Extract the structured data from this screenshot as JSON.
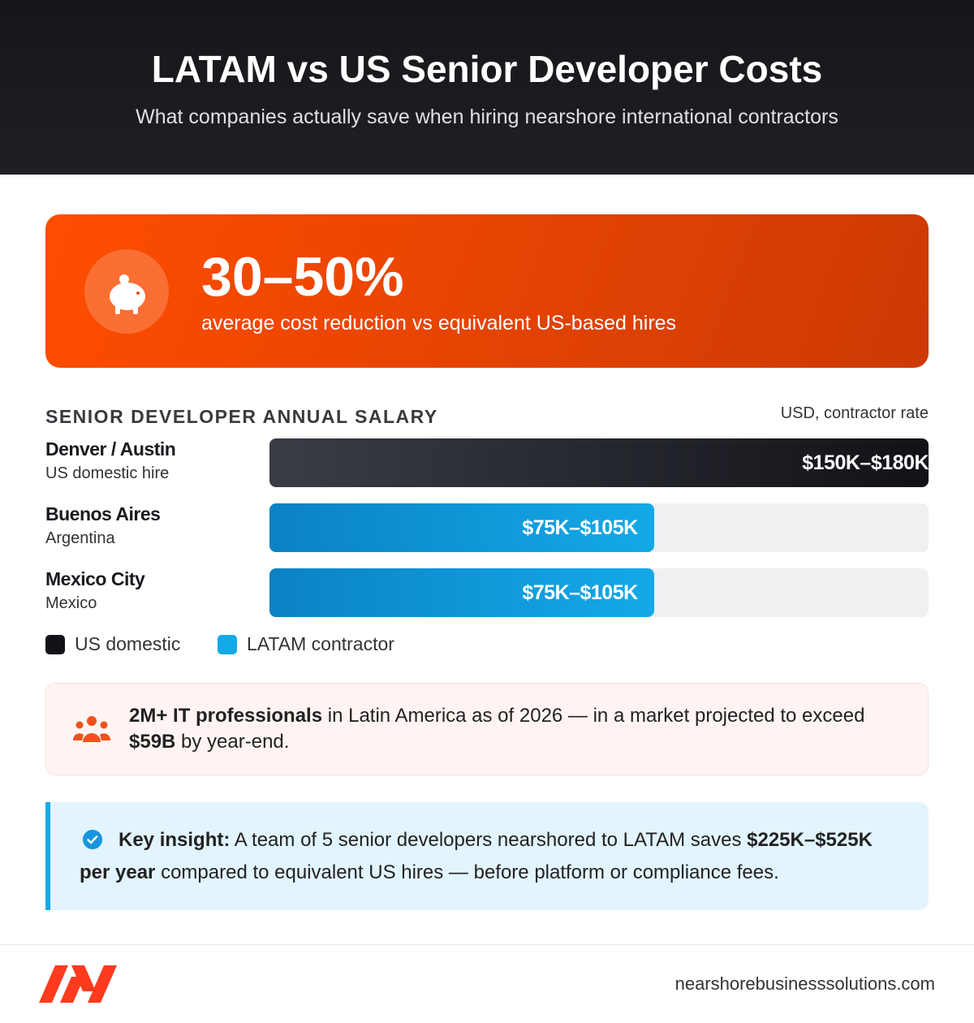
{
  "header": {
    "title": "LATAM vs US Senior Developer Costs",
    "subtitle": "What companies actually save when hiring nearshore international contractors"
  },
  "highlight": {
    "figure": "30–50%",
    "text": "average cost reduction vs equivalent US-based hires"
  },
  "chart_data": {
    "type": "bar",
    "title": "SENIOR DEVELOPER ANNUAL SALARY",
    "unit_note": "USD, contractor rate",
    "categories": [
      "Denver / Austin",
      "Buenos Aires",
      "Mexico City"
    ],
    "category_subtitles": [
      "US domestic hire",
      "Argentina",
      "Mexico"
    ],
    "values": [
      180,
      105,
      105
    ],
    "value_labels": [
      "$150K–$180K",
      "$75K–$105K",
      "$75K–$105K"
    ],
    "groups": [
      0,
      1,
      1
    ],
    "xlim": [
      0,
      180
    ],
    "legend": [
      {
        "name": "US domestic",
        "color": "#111217"
      },
      {
        "name": "LATAM contractor",
        "color": "#14a9e8"
      }
    ]
  },
  "stat": {
    "parts": [
      "2M+ IT professionals",
      " in Latin America as of 2026 — in a market projected to exceed ",
      "$59B",
      " by year-end."
    ]
  },
  "insight": {
    "parts": [
      "Key insight:",
      " A team of 5 senior developers nearshored to LATAM saves ",
      "$225K–$525K per year",
      " compared to equivalent US hires — before platform or compliance fees."
    ]
  },
  "footer": {
    "url": "nearshorebusinesssolutions.com"
  }
}
